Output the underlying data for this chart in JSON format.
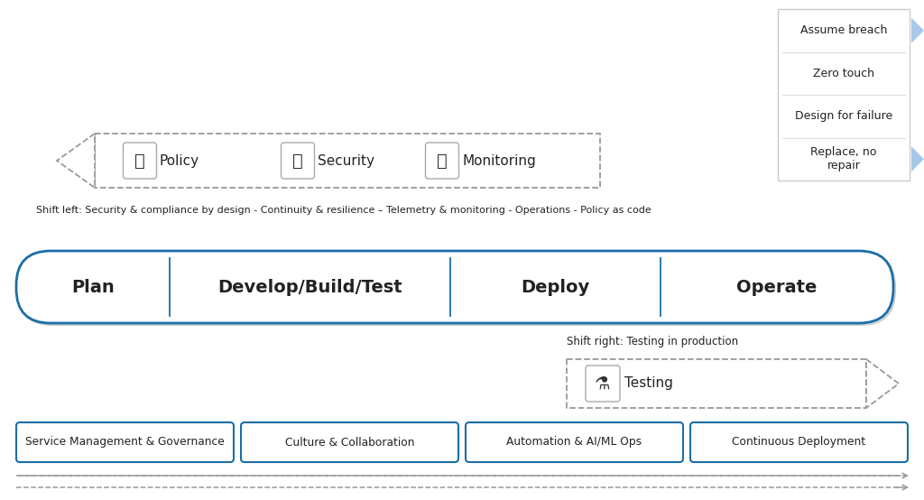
{
  "bg_color": "#ffffff",
  "pipeline_stages": [
    "Plan",
    "Develop/Build/Test",
    "Deploy",
    "Operate"
  ],
  "shift_left_text": "Shift left: Security & compliance by design - Continuity & resilience – Telemetry & monitoring - Operations - Policy as code",
  "shift_left_arrow_items": [
    "Policy",
    "Security",
    "Monitoring"
  ],
  "shift_right_text": "Shift right: Testing in production",
  "shift_right_arrow_items": [
    "Testing"
  ],
  "bottom_boxes": [
    "Service Management & Governance",
    "Culture & Collaboration",
    "Automation & AI/ML Ops",
    "Continuous Deployment"
  ],
  "paradigm_items": [
    "Assume breach",
    "Zero touch",
    "Design for failure",
    "Replace, no\nrepair"
  ],
  "paradigm_arrow_color": "#a8c8e8",
  "blue_line_color": "#1a6ea8",
  "dashed_color": "#999999",
  "text_color": "#222222",
  "bottom_border_color": "#1a6ea8",
  "pipeline_border_color": "#1a6ea8",
  "shadow_color": "#cccccc"
}
